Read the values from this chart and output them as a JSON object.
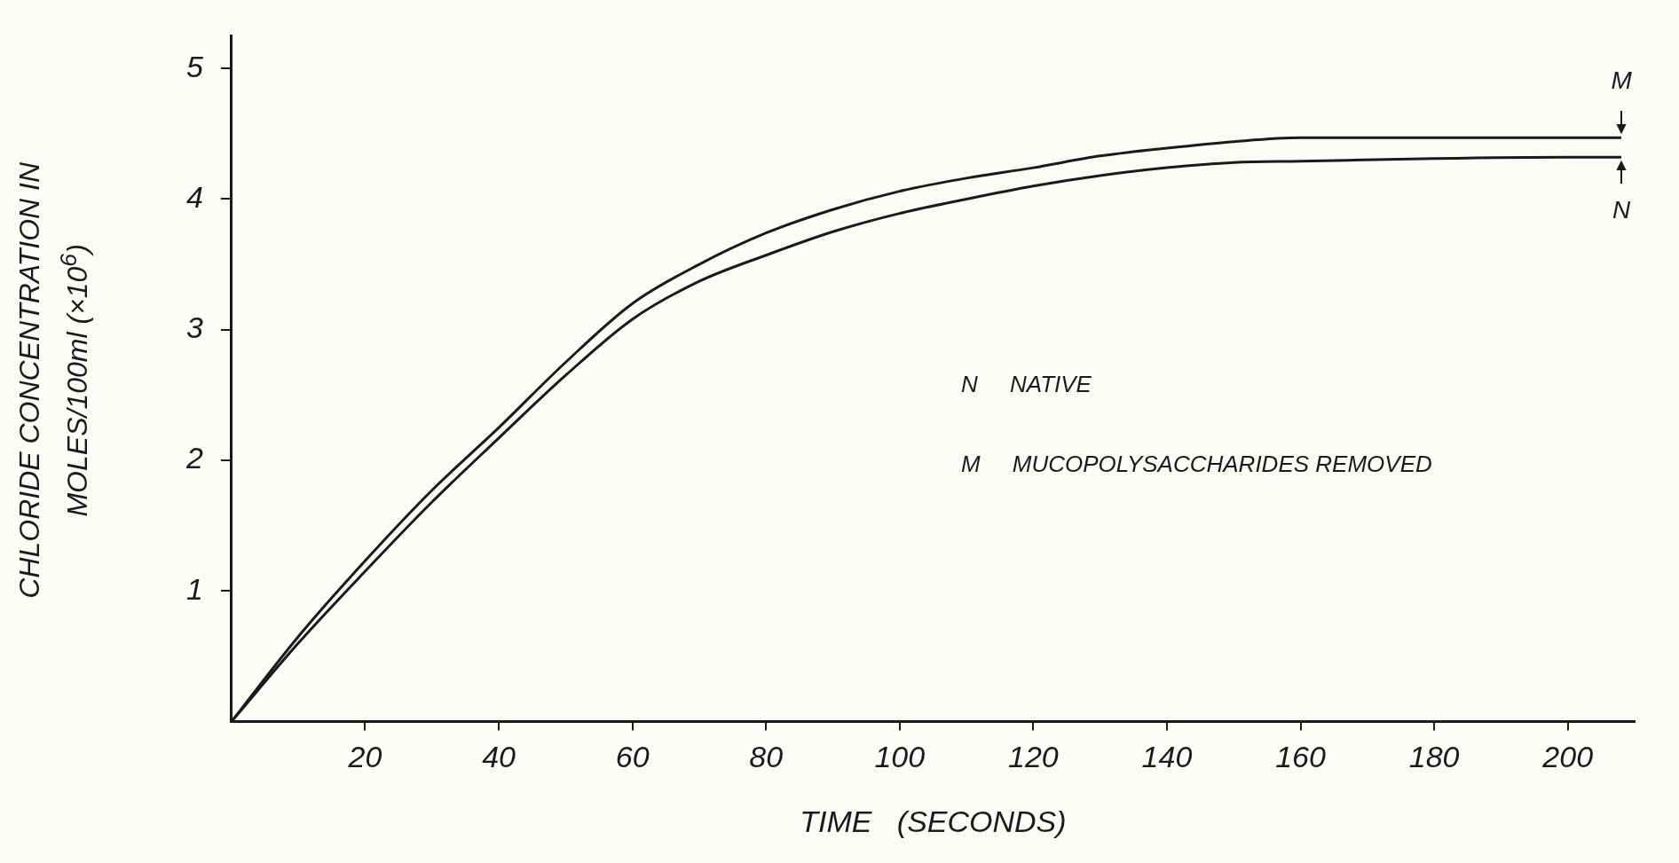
{
  "chart_data": {
    "type": "line",
    "xlabel": "TIME   (SECONDS)",
    "ylabel": "CHLORIDE CONCENTRATION IN MOLES/100ml (×10$^{6}$)",
    "xlim": [
      0,
      210
    ],
    "xticks": [
      20,
      40,
      60,
      80,
      100,
      120,
      140,
      160,
      180,
      200
    ],
    "ylim": [
      0,
      5.25
    ],
    "yticks": [
      1,
      2,
      3,
      4,
      5
    ],
    "x": [
      0,
      10,
      20,
      30,
      40,
      50,
      60,
      70,
      80,
      90,
      100,
      110,
      120,
      130,
      140,
      150,
      160,
      180,
      200,
      208
    ],
    "series": [
      {
        "name": "M",
        "color": "#1a1a1a",
        "values": [
          0,
          0.65,
          1.23,
          1.77,
          2.25,
          2.75,
          3.2,
          3.5,
          3.74,
          3.92,
          4.06,
          4.16,
          4.24,
          4.33,
          4.39,
          4.44,
          4.47,
          4.47,
          4.47,
          4.47
        ]
      },
      {
        "name": "N",
        "color": "#1a1a1a",
        "values": [
          0,
          0.6,
          1.15,
          1.68,
          2.17,
          2.65,
          3.08,
          3.37,
          3.57,
          3.75,
          3.89,
          4.0,
          4.1,
          4.18,
          4.24,
          4.28,
          4.29,
          4.31,
          4.32,
          4.32
        ]
      }
    ],
    "annotations": [
      "N     NATIVE",
      "M     MUCOPOLYSACCHARIDES REMOVED"
    ],
    "grid": false,
    "legend": "right",
    "marker": "none",
    "line_style": "solid"
  }
}
